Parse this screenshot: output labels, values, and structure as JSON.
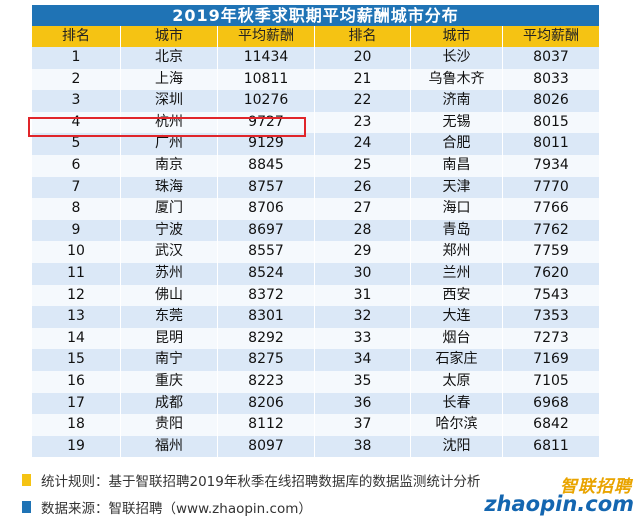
{
  "title": "2019年秋季求职期平均薪酬城市分布",
  "headers": [
    "排名",
    "城市",
    "平均薪酬",
    "排名",
    "城市",
    "平均薪酬"
  ],
  "rows": [
    [
      "1",
      "北京",
      "11434",
      "20",
      "长沙",
      "8037"
    ],
    [
      "2",
      "上海",
      "10811",
      "21",
      "乌鲁木齐",
      "8033"
    ],
    [
      "3",
      "深圳",
      "10276",
      "22",
      "济南",
      "8026"
    ],
    [
      "4",
      "杭州",
      "9727",
      "23",
      "无锡",
      "8015"
    ],
    [
      "5",
      "广州",
      "9129",
      "24",
      "合肥",
      "8011"
    ],
    [
      "6",
      "南京",
      "8845",
      "25",
      "南昌",
      "7934"
    ],
    [
      "7",
      "珠海",
      "8757",
      "26",
      "天津",
      "7770"
    ],
    [
      "8",
      "厦门",
      "8706",
      "27",
      "海口",
      "7766"
    ],
    [
      "9",
      "宁波",
      "8697",
      "28",
      "青岛",
      "7762"
    ],
    [
      "10",
      "武汉",
      "8557",
      "29",
      "郑州",
      "7759"
    ],
    [
      "11",
      "苏州",
      "8524",
      "30",
      "兰州",
      "7620"
    ],
    [
      "12",
      "佛山",
      "8372",
      "31",
      "西安",
      "7543"
    ],
    [
      "13",
      "东莞",
      "8301",
      "32",
      "大连",
      "7353"
    ],
    [
      "14",
      "昆明",
      "8292",
      "33",
      "烟台",
      "7273"
    ],
    [
      "15",
      "南宁",
      "8275",
      "34",
      "石家庄",
      "7169"
    ],
    [
      "16",
      "重庆",
      "8223",
      "35",
      "太原",
      "7105"
    ],
    [
      "17",
      "成都",
      "8206",
      "36",
      "长春",
      "6968"
    ],
    [
      "18",
      "贵阳",
      "8112",
      "37",
      "哈尔滨",
      "6842"
    ],
    [
      "19",
      "福州",
      "8097",
      "38",
      "沈阳",
      "6811"
    ]
  ],
  "notes": {
    "rule": "统计规则：基于智联招聘2019年秋季在线招聘数据库的数据监测统计分析",
    "source": "数据来源：智联招聘（www.zhaopin.com）"
  },
  "logo": {
    "cn": "智联招聘",
    "en": "zhaopin.com"
  },
  "colors": {
    "title_bg": "#1f73b5",
    "header_bg": "#f5c313",
    "row_odd": "#dbe8f7",
    "row_even": "#f5f9fd",
    "highlight": "#e0252a",
    "note_rule_marker": "#f5c313",
    "note_source_marker": "#1f73b5"
  }
}
